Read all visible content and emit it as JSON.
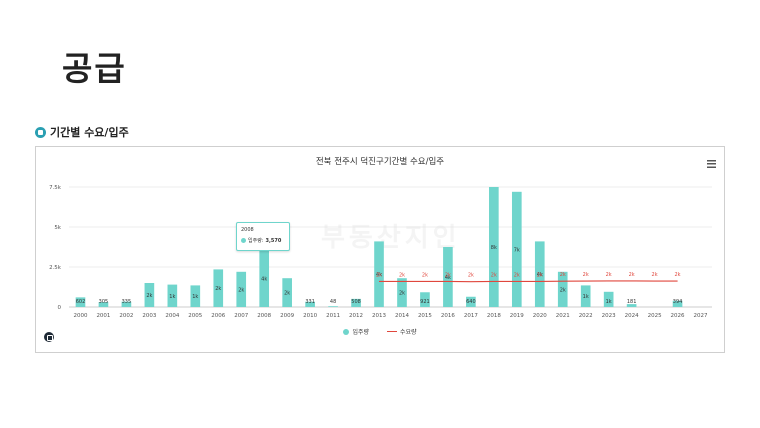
{
  "slide": {
    "title": "공급"
  },
  "section": {
    "title": "기간별 수요/입주"
  },
  "watermark": "부동산지인",
  "tooltip": {
    "year": "2008",
    "label": "입주량:",
    "value": "3,570"
  },
  "chart_data": {
    "type": "bar",
    "title": "전북 전주시 덕진구기간별 수요/입주",
    "xlabel": "",
    "ylabel": "",
    "ylim": [
      0,
      7500
    ],
    "yticks": [
      0,
      2500,
      5000,
      7500
    ],
    "ytick_labels": [
      "0",
      "2.5k",
      "5k",
      "7.5k"
    ],
    "categories": [
      "2000",
      "2001",
      "2002",
      "2003",
      "2004",
      "2005",
      "2006",
      "2007",
      "2008",
      "2009",
      "2010",
      "2011",
      "2012",
      "2013",
      "2014",
      "2015",
      "2016",
      "2017",
      "2018",
      "2019",
      "2020",
      "2021",
      "2022",
      "2023",
      "2024",
      "2025",
      "2026",
      "2027"
    ],
    "grid": true,
    "legend_position": "bottom",
    "series": [
      {
        "name": "입주량",
        "kind": "bar",
        "color": "#6fd5cc",
        "values": [
          602,
          305,
          335,
          1500,
          1400,
          1350,
          2350,
          2200,
          3570,
          1800,
          331,
          48,
          508,
          4100,
          1800,
          921,
          3750,
          640,
          7500,
          7200,
          4100,
          2200,
          1350,
          950,
          181,
          0,
          394,
          0
        ],
        "labels": [
          "602",
          "305",
          "335",
          "2k",
          "1k",
          "1k",
          "2k",
          "2k",
          "4k",
          "2k",
          "331",
          "48",
          "508",
          "4k",
          "2k",
          "921",
          "4k",
          "640",
          "8k",
          "7k",
          "4k",
          "2k",
          "1k",
          "1k",
          "181",
          "",
          "394",
          ""
        ]
      },
      {
        "name": "수요량",
        "kind": "line",
        "color": "#e0473d",
        "values": [
          null,
          null,
          null,
          null,
          null,
          null,
          null,
          null,
          null,
          null,
          null,
          null,
          null,
          1600,
          1600,
          1600,
          1600,
          1580,
          1600,
          1600,
          1600,
          1610,
          1620,
          1630,
          1630,
          1620,
          1620,
          null
        ],
        "labels": [
          "",
          "",
          "",
          "",
          "",
          "",
          "",
          "",
          "",
          "",
          "",
          "",
          "",
          "2k",
          "2k",
          "2k",
          "2k",
          "2k",
          "2k",
          "2k",
          "2k",
          "2k",
          "2k",
          "2k",
          "2k",
          "2k",
          "2k",
          ""
        ]
      }
    ]
  }
}
